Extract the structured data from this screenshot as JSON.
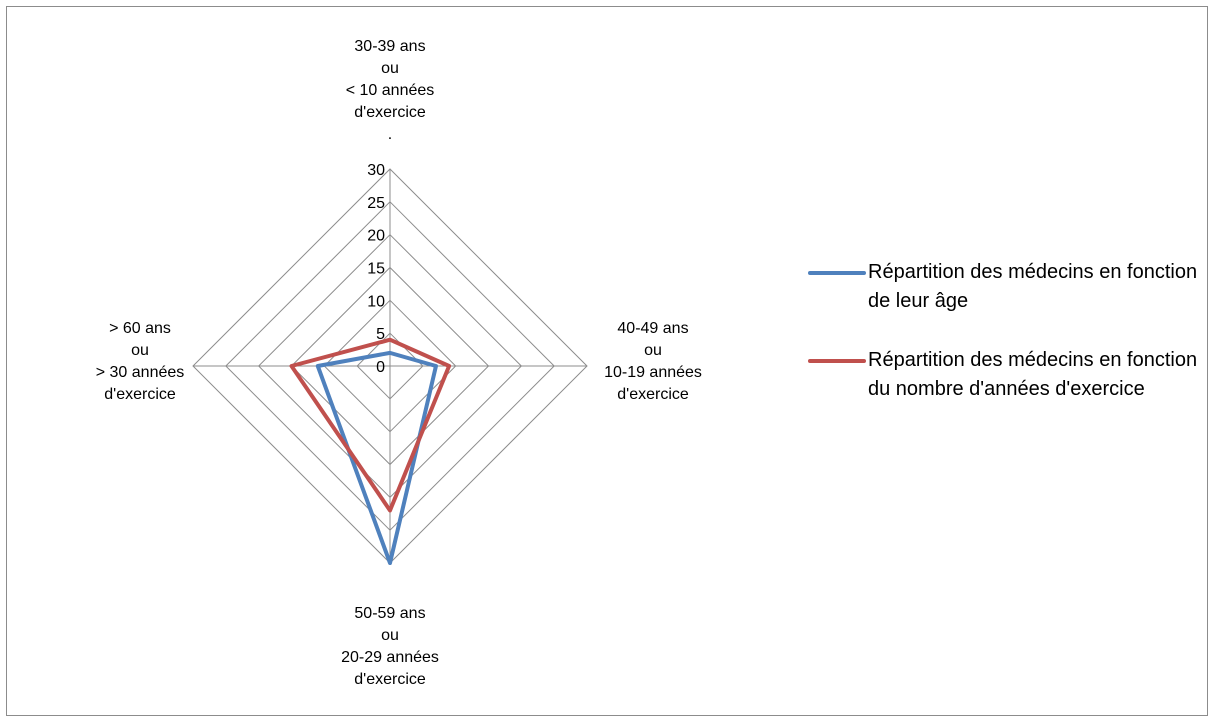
{
  "chart_data": {
    "type": "radar",
    "title": "",
    "categories": [
      {
        "lines": [
          "30-39 ans",
          "ou",
          "< 10 années",
          "d'exercice",
          "."
        ]
      },
      {
        "lines": [
          "40-49 ans",
          "ou",
          "10-19 années",
          "d'exercice"
        ]
      },
      {
        "lines": [
          "50-59 ans",
          "ou",
          "20-29 années",
          "d'exercice"
        ]
      },
      {
        "lines": [
          "> 60 ans",
          "ou",
          "> 30 années",
          "d'exercice"
        ]
      }
    ],
    "radial_axis": {
      "min": 0,
      "max": 30,
      "step": 5,
      "ticks": [
        "0",
        "5",
        "10",
        "15",
        "20",
        "25",
        "30"
      ]
    },
    "grid": true,
    "legend_position": "right",
    "series": [
      {
        "name": "Répartition des médecins en fonction de leur âge",
        "color": "#4f81bd",
        "values": [
          2,
          7,
          30,
          11
        ]
      },
      {
        "name": "Répartition des médecins en fonction du nombre d'années d'exercice",
        "color": "#c0504d",
        "values": [
          4,
          9,
          22,
          15
        ]
      }
    ]
  }
}
